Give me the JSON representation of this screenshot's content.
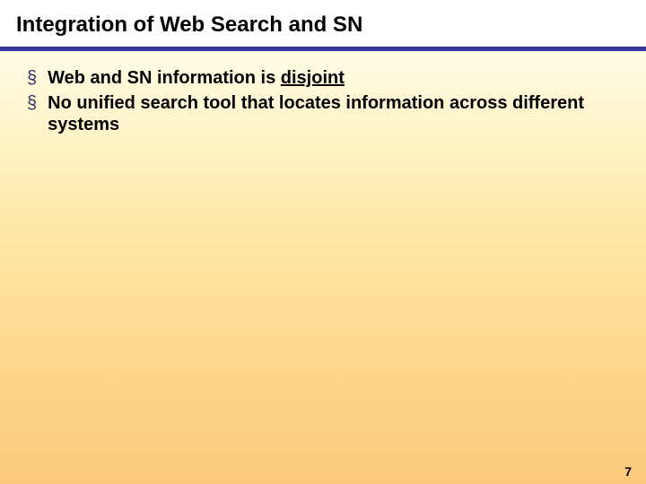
{
  "slide": {
    "title": "Integration of Web Search and SN",
    "bullets": [
      {
        "pre": "Web and SN information is ",
        "underlined": "disjoint",
        "post": ""
      },
      {
        "pre": "No unified search tool that locates information across different systems",
        "underlined": "",
        "post": ""
      }
    ],
    "page_number": "7"
  },
  "style": {
    "title_fontsize": 24,
    "bullet_fontsize": 20,
    "title_color": "#000000",
    "bullet_text_color": "#000000",
    "bullet_marker_color": "#333366",
    "divider_color": "#333399",
    "divider_height": 5,
    "gradient_top": "#fffde6",
    "gradient_mid": "#ffe9a8",
    "gradient_bottom": "#fbc979",
    "background_top": "#ffffff",
    "page_number_fontsize": 14,
    "slide_width": 720,
    "slide_height": 540
  }
}
